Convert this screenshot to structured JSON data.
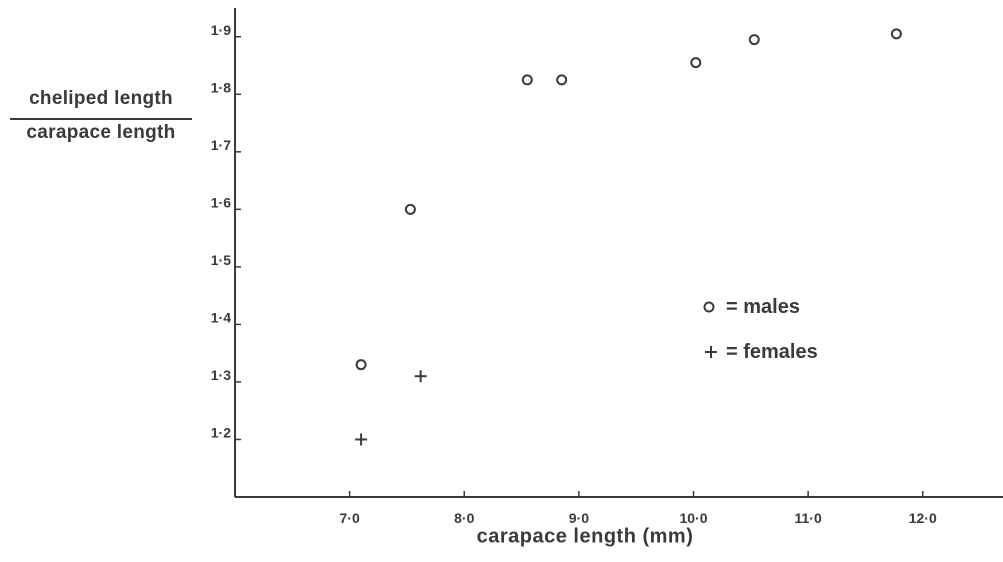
{
  "chart_data": {
    "type": "scatter",
    "title": "",
    "ylabel_numerator": "cheliped length",
    "ylabel_denominator": "carapace length",
    "xlabel": "carapace length (mm)",
    "xlim": [
      6.0,
      12.7
    ],
    "ylim": [
      1.1,
      1.95
    ],
    "x_ticks": [
      {
        "value": 7.0,
        "label": "7·0"
      },
      {
        "value": 8.0,
        "label": "8·0"
      },
      {
        "value": 9.0,
        "label": "9·0"
      },
      {
        "value": 10.0,
        "label": "10·0"
      },
      {
        "value": 11.0,
        "label": "11·0"
      },
      {
        "value": 12.0,
        "label": "12·0"
      }
    ],
    "y_ticks": [
      {
        "value": 1.2,
        "label": "1·2"
      },
      {
        "value": 1.3,
        "label": "1·3"
      },
      {
        "value": 1.4,
        "label": "1·4"
      },
      {
        "value": 1.5,
        "label": "1·5"
      },
      {
        "value": 1.6,
        "label": "1·6"
      },
      {
        "value": 1.7,
        "label": "1·7"
      },
      {
        "value": 1.8,
        "label": "1·8"
      },
      {
        "value": 1.9,
        "label": "1·9"
      }
    ],
    "grid": false,
    "legend_position": "right",
    "series": [
      {
        "name": "males",
        "legend_label": "= males",
        "marker": "circle",
        "points": [
          {
            "x": 7.1,
            "y": 1.33
          },
          {
            "x": 7.53,
            "y": 1.6
          },
          {
            "x": 8.55,
            "y": 1.825
          },
          {
            "x": 8.85,
            "y": 1.825
          },
          {
            "x": 10.02,
            "y": 1.855
          },
          {
            "x": 10.53,
            "y": 1.895
          },
          {
            "x": 11.77,
            "y": 1.905
          }
        ]
      },
      {
        "name": "females",
        "legend_label": "= females",
        "marker": "plus",
        "points": [
          {
            "x": 7.1,
            "y": 1.2
          },
          {
            "x": 7.62,
            "y": 1.31
          }
        ]
      }
    ],
    "colors": {
      "ink": "#3a3a3a",
      "background": "#ffffff"
    }
  }
}
